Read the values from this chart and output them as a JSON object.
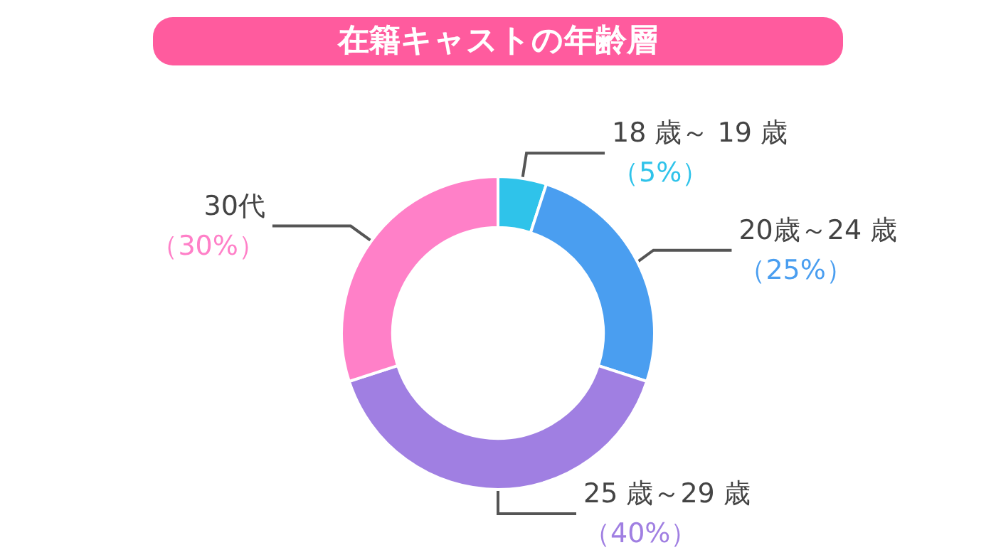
{
  "chart_data": {
    "type": "donut",
    "title": "在籍キャストの年齢層",
    "categories": [
      "18 歳～ 19 歳",
      "20歳～24 歳",
      "25 歳～29 歳",
      "30代"
    ],
    "values": [
      5,
      25,
      40,
      30
    ],
    "colors": [
      "#2fc3ea",
      "#4a9ef0",
      "#a07fe2",
      "#ff80c8"
    ],
    "value_labels": [
      "（5%）",
      "（25%）",
      "（40%）",
      "（30%）"
    ],
    "legend": false
  }
}
